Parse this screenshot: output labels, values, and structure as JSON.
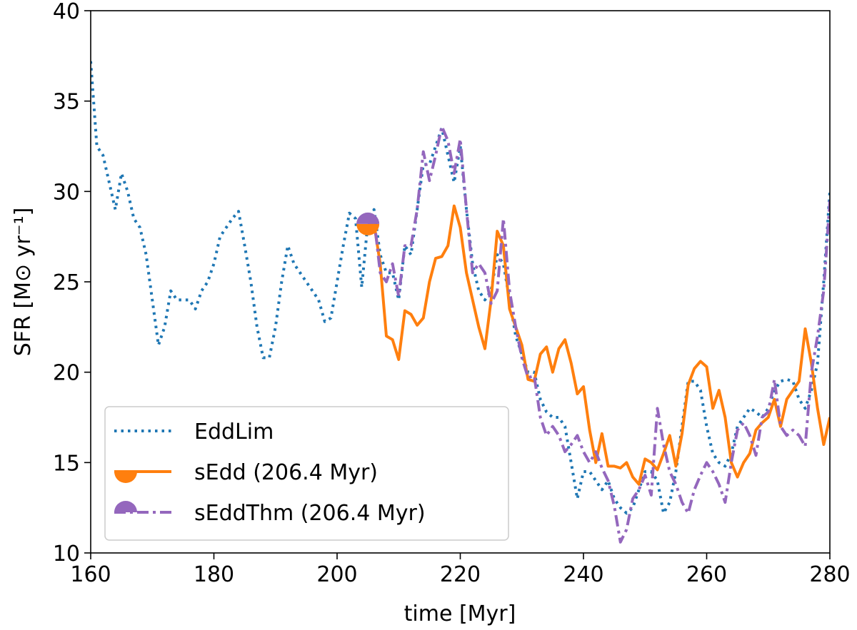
{
  "chart_data": {
    "type": "line",
    "xlabel": "time [Myr]",
    "ylabel": "SFR [M⊙ yr⁻¹]",
    "xlim": [
      160,
      280
    ],
    "xticks": [
      160,
      180,
      200,
      220,
      240,
      260,
      280
    ],
    "ylim": [
      10,
      40
    ],
    "yticks": [
      10,
      15,
      20,
      25,
      30,
      35,
      40
    ],
    "legend": "lower left",
    "series": [
      {
        "name": "EddLim",
        "color": "#1f77b4",
        "linestyle": "dotted",
        "x": [
          160,
          161,
          162,
          163,
          164,
          165,
          166,
          167,
          168,
          169,
          170,
          171,
          172,
          173,
          174,
          175,
          176,
          177,
          178,
          179,
          180,
          181,
          182,
          183,
          184,
          185,
          186,
          187,
          188,
          189,
          190,
          191,
          192,
          193,
          194,
          195,
          196,
          197,
          198,
          199,
          200,
          201,
          202,
          203,
          204,
          205,
          206,
          207,
          208,
          209,
          210,
          211,
          212,
          213,
          214,
          215,
          216,
          217,
          218,
          219,
          220,
          221,
          222,
          223,
          224,
          225,
          226,
          227,
          228,
          229,
          230,
          231,
          232,
          233,
          234,
          235,
          236,
          237,
          238,
          239,
          240,
          241,
          242,
          243,
          244,
          245,
          246,
          247,
          248,
          249,
          250,
          251,
          252,
          253,
          254,
          255,
          256,
          257,
          258,
          259,
          260,
          261,
          262,
          263,
          264,
          265,
          266,
          267,
          268,
          269,
          270,
          271,
          272,
          273,
          274,
          275,
          276,
          277,
          278,
          279,
          280
        ],
        "values": [
          37.2,
          32.5,
          32,
          30.5,
          29,
          31,
          30,
          28.5,
          28,
          26.5,
          24,
          21.5,
          22.5,
          24.5,
          24,
          24,
          24,
          23.5,
          24.5,
          25,
          26,
          27.5,
          28,
          28.5,
          28.9,
          27,
          25,
          22.5,
          20.8,
          20.8,
          22.5,
          25,
          27,
          26,
          25.5,
          25,
          24.5,
          24,
          22.8,
          23,
          25,
          27,
          28.8,
          28.5,
          24.7,
          28.3,
          29,
          26.5,
          25.5,
          25.5,
          24,
          27,
          26.5,
          29,
          31.5,
          31.5,
          32.5,
          33.5,
          32,
          30.5,
          32.5,
          29,
          26,
          24.5,
          24,
          24.5,
          26.5,
          26,
          24,
          22,
          21,
          20,
          20,
          18.5,
          17.8,
          17.5,
          17.5,
          17,
          15,
          13,
          14.5,
          14.5,
          14,
          13.5,
          14,
          13,
          12.5,
          12.2,
          12.5,
          13.5,
          14.5,
          14.5,
          14,
          12.2,
          12.8,
          14.5,
          17,
          19.5,
          19.5,
          19,
          17,
          15.5,
          15,
          14.8,
          15.5,
          17,
          17.5,
          18,
          17.8,
          17.5,
          18,
          19,
          19.5,
          19.6,
          19.5,
          18.5,
          18,
          19,
          20.5,
          25,
          30
        ]
      },
      {
        "name": "sEdd (206.4 Myr)",
        "color": "#ff7f0e",
        "linestyle": "solid",
        "marker": "bottom-half",
        "x": [
          205,
          206,
          207,
          208,
          209,
          210,
          211,
          212,
          213,
          214,
          215,
          216,
          217,
          218,
          219,
          220,
          221,
          222,
          223,
          224,
          225,
          226,
          227,
          228,
          229,
          230,
          231,
          232,
          233,
          234,
          235,
          236,
          237,
          238,
          239,
          240,
          241,
          242,
          243,
          244,
          245,
          246,
          247,
          248,
          249,
          250,
          251,
          252,
          253,
          254,
          255,
          256,
          257,
          258,
          259,
          260,
          261,
          262,
          263,
          264,
          265,
          266,
          267,
          268,
          269,
          270,
          271,
          272,
          273,
          274,
          275,
          276,
          277,
          278,
          279,
          280
        ],
        "values": [
          28.2,
          28.2,
          26,
          22,
          21.8,
          20.7,
          23.4,
          23.2,
          22.6,
          23,
          25,
          26.3,
          26.4,
          27,
          29.2,
          28,
          25.5,
          24,
          22.5,
          21.3,
          24,
          27.8,
          27,
          23.5,
          22.5,
          21.5,
          19.6,
          19.5,
          21,
          21.4,
          20,
          21.3,
          21.8,
          20.5,
          18.8,
          19.2,
          16.8,
          15,
          16.6,
          14.8,
          14.8,
          14.7,
          15,
          14.2,
          13.8,
          15.2,
          15,
          14.6,
          15.5,
          16.5,
          14.8,
          16.6,
          19.3,
          20.2,
          20.6,
          20.3,
          18,
          19,
          17.5,
          15,
          14.2,
          15,
          15.5,
          16.8,
          17.2,
          17.5,
          18.5,
          17,
          18.5,
          19,
          19.5,
          22.4,
          20.5,
          18,
          16,
          17.5
        ]
      },
      {
        "name": "sEddThm (206.4 Myr)",
        "color": "#9467bd",
        "linestyle": "dashdot",
        "marker": "top-half",
        "x": [
          205,
          206,
          207,
          208,
          209,
          210,
          211,
          212,
          213,
          214,
          215,
          216,
          217,
          218,
          219,
          220,
          221,
          222,
          223,
          224,
          225,
          226,
          227,
          228,
          229,
          230,
          231,
          232,
          233,
          234,
          235,
          236,
          237,
          238,
          239,
          240,
          241,
          242,
          243,
          244,
          245,
          246,
          247,
          248,
          249,
          250,
          251,
          252,
          253,
          254,
          255,
          256,
          257,
          258,
          259,
          260,
          261,
          262,
          263,
          264,
          265,
          266,
          267,
          268,
          269,
          270,
          271,
          272,
          273,
          274,
          275,
          276,
          277,
          278,
          279,
          280
        ],
        "values": [
          28.2,
          28.5,
          25.5,
          25,
          26,
          24.2,
          27,
          27,
          29,
          32.2,
          30.6,
          32,
          33.6,
          32.8,
          31,
          32.9,
          29,
          25.5,
          26,
          25.5,
          23.8,
          24.5,
          28.5,
          24.5,
          22.5,
          20.8,
          19.7,
          19.8,
          17.5,
          16.5,
          17,
          16.5,
          15.6,
          16,
          16.5,
          15.6,
          15,
          15.6,
          14.7,
          14,
          12.6,
          10.6,
          11.3,
          13,
          13.5,
          14.3,
          13.2,
          18,
          16,
          14.5,
          13.8,
          12.8,
          12.2,
          13.5,
          14.3,
          15,
          14.5,
          13.8,
          12.8,
          15,
          16.8,
          17.2,
          16.5,
          15.4,
          17.5,
          17.8,
          19.6,
          17,
          16.5,
          16.8,
          16.5,
          15.9,
          20,
          22,
          24.5,
          29.5
        ]
      }
    ]
  }
}
